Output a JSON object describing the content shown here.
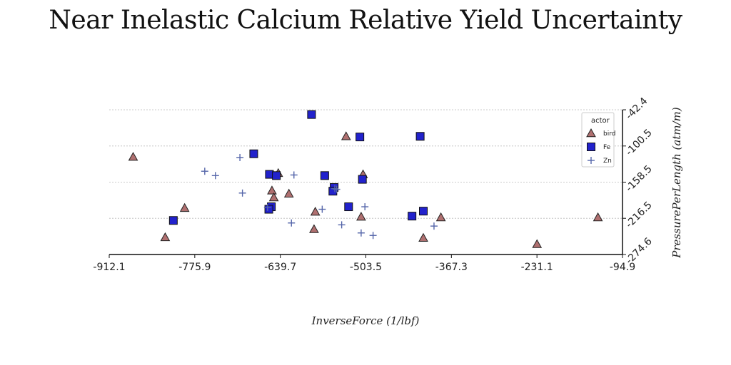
{
  "chart_data": {
    "type": "scatter",
    "title": "Near Inelastic Calcium Relative Yield Uncertainty",
    "xlabel": "InverseForce (1/lbf)",
    "ylabel": "PressurePerLength (atm/m)",
    "xlim": [
      -912.1,
      -94.9
    ],
    "ylim": [
      -274.6,
      -42.4
    ],
    "y_inverted": true,
    "y_axis_side": "right",
    "x_ticks": [
      "-912.1",
      "-775.9",
      "-639.7",
      "-503.5",
      "-367.3",
      "-231.1",
      "-94.9"
    ],
    "y_ticks": [
      "-42.4",
      "-100.5",
      "-158.5",
      "-216.5",
      "-274.6"
    ],
    "grid": "horizontal",
    "legend": {
      "title": "actor",
      "placement": "top-right"
    },
    "colors": {
      "bird": "#b07070",
      "Fe": "#2222cc",
      "Zn": "#5566aa"
    },
    "series": [
      {
        "name": "bird",
        "marker": "triangle",
        "points": [
          [
            -874,
            -118
          ],
          [
            -823,
            -247
          ],
          [
            -792,
            -200
          ],
          [
            -653,
            -172
          ],
          [
            -650,
            -183
          ],
          [
            -643,
            -144
          ],
          [
            -626,
            -177
          ],
          [
            -586,
            -234
          ],
          [
            -584,
            -206
          ],
          [
            -535,
            -85
          ],
          [
            -508,
            -146
          ],
          [
            -511,
            -214
          ],
          [
            -412,
            -248
          ],
          [
            -384,
            -215
          ],
          [
            -231,
            -258
          ],
          [
            -134,
            -215
          ]
        ]
      },
      {
        "name": "Fe",
        "marker": "square",
        "points": [
          [
            -590,
            -50
          ],
          [
            -513,
            -86
          ],
          [
            -417,
            -85
          ],
          [
            -682,
            -113
          ],
          [
            -657,
            -146
          ],
          [
            -646,
            -148
          ],
          [
            -569,
            -148
          ],
          [
            -509,
            -154
          ],
          [
            -554,
            -167
          ],
          [
            -556,
            -173
          ],
          [
            -531,
            -198
          ],
          [
            -654,
            -198
          ],
          [
            -658,
            -202
          ],
          [
            -810,
            -220
          ],
          [
            -430,
            -213
          ],
          [
            -412,
            -205
          ]
        ]
      },
      {
        "name": "Zn",
        "marker": "plus",
        "points": [
          [
            -704,
            -119
          ],
          [
            -760,
            -141
          ],
          [
            -743,
            -148
          ],
          [
            -618,
            -147
          ],
          [
            -700,
            -176
          ],
          [
            -550,
            -170
          ],
          [
            -660,
            -199
          ],
          [
            -573,
            -202
          ],
          [
            -505,
            -198
          ],
          [
            -622,
            -224
          ],
          [
            -542,
            -227
          ],
          [
            -511,
            -240
          ],
          [
            -492,
            -244
          ],
          [
            -395,
            -229
          ],
          [
            -553,
            -169
          ]
        ]
      }
    ]
  }
}
